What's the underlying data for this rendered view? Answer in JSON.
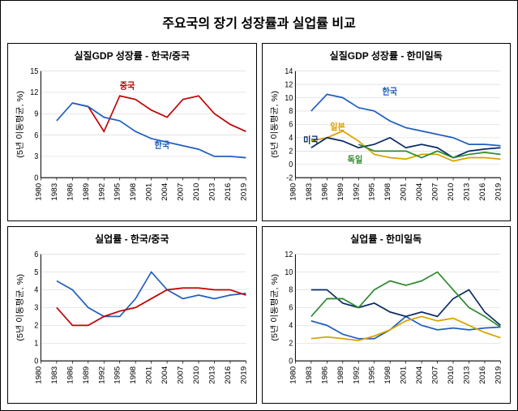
{
  "title": "주요국의 장기 성장률과 실업률 비교",
  "ylabel": "(5년 이동평균, %)",
  "x_categories": [
    "1980",
    "1983",
    "1986",
    "1989",
    "1992",
    "1995",
    "1998",
    "2001",
    "2004",
    "2007",
    "2010",
    "2013",
    "2016",
    "2019"
  ],
  "colors": {
    "korea": "#1f5fbf",
    "china": "#c00000",
    "japan": "#d9a300",
    "usa": "#0a2a66",
    "germany": "#2e8b2e",
    "grid": "#d0d0d0",
    "axis": "#000000",
    "background": "#ffffff"
  },
  "fonts": {
    "title_size": 16,
    "panel_title_size": 12,
    "axis_size": 9,
    "ylabel_size": 10,
    "series_label_size": 10
  },
  "panels": {
    "p1": {
      "title": "실질GDP 성장률 - 한국/중국",
      "ylim": [
        0,
        15
      ],
      "ytick_step": 3,
      "series": {
        "china": {
          "label": "중국",
          "label_pos": [
            5,
            12.5
          ],
          "values": [
            null,
            null,
            10.5,
            10,
            6.5,
            11.5,
            11,
            9.5,
            8.5,
            11,
            11.5,
            9,
            7.5,
            6.5
          ]
        },
        "korea": {
          "label": "한국",
          "label_pos": [
            7.2,
            4.2
          ],
          "values": [
            null,
            8,
            10.5,
            10,
            8.5,
            8,
            6.5,
            5.5,
            5,
            4.5,
            4,
            3,
            3,
            2.8
          ]
        }
      }
    },
    "p2": {
      "title": "실질GDP 성장률 - 한미일독",
      "ylim": [
        -2,
        14
      ],
      "ytick_step": 2,
      "series": {
        "korea": {
          "label": "한국",
          "label_pos": [
            5.5,
            10.5
          ],
          "values": [
            null,
            8,
            10.5,
            10,
            8.5,
            8,
            6.5,
            5.5,
            5,
            4.5,
            4,
            3,
            3,
            2.8
          ]
        },
        "japan": {
          "label": "일본",
          "label_pos": [
            2.2,
            5.2
          ],
          "values": [
            null,
            3.5,
            4,
            5,
            3.5,
            1.5,
            1,
            0.8,
            1.5,
            1.5,
            0.5,
            1,
            1,
            0.8
          ]
        },
        "usa": {
          "label": "미국",
          "label_pos": [
            0.5,
            3.2
          ],
          "values": [
            null,
            2.5,
            4,
            3.5,
            2.5,
            3,
            4,
            2.5,
            3,
            2.5,
            1,
            2,
            2.3,
            2.5
          ]
        },
        "germany": {
          "label": "독일",
          "label_pos": [
            3.3,
            0.3
          ],
          "values": [
            null,
            null,
            null,
            null,
            3,
            2,
            2,
            2,
            1,
            2,
            1,
            1.5,
            1.8,
            1.5
          ]
        }
      }
    },
    "p3": {
      "title": "실업률 - 한국/중국",
      "ylim": [
        0,
        6
      ],
      "ytick_step": 1,
      "series": {
        "korea": {
          "label": "",
          "values": [
            null,
            4.5,
            4,
            3,
            2.5,
            2.5,
            3.5,
            5,
            4,
            3.5,
            3.7,
            3.5,
            3.7,
            3.8
          ]
        },
        "china": {
          "label": "",
          "values": [
            null,
            3,
            2,
            2,
            2.5,
            2.8,
            3,
            3.5,
            4,
            4.1,
            4.1,
            4,
            4,
            3.7
          ]
        }
      }
    },
    "p4": {
      "title": "실업률 - 한미일독",
      "ylim": [
        0,
        12
      ],
      "ytick_step": 2,
      "series": {
        "korea": {
          "label": "",
          "values": [
            null,
            4.5,
            4,
            3,
            2.5,
            2.5,
            3.5,
            5,
            4,
            3.5,
            3.7,
            3.5,
            3.7,
            3.8
          ]
        },
        "japan": {
          "label": "",
          "values": [
            null,
            2.5,
            2.7,
            2.5,
            2.3,
            2.8,
            3.5,
            4.5,
            5,
            4.5,
            4.8,
            4,
            3.2,
            2.6
          ]
        },
        "usa": {
          "label": "",
          "values": [
            null,
            8,
            8,
            6.5,
            6,
            6.5,
            5.5,
            5,
            5.5,
            5,
            7,
            8,
            5.5,
            4
          ]
        },
        "germany": {
          "label": "",
          "values": [
            null,
            5,
            7,
            7,
            6,
            8,
            9,
            8.5,
            9,
            10,
            8,
            6,
            5,
            3.8
          ]
        }
      }
    }
  }
}
